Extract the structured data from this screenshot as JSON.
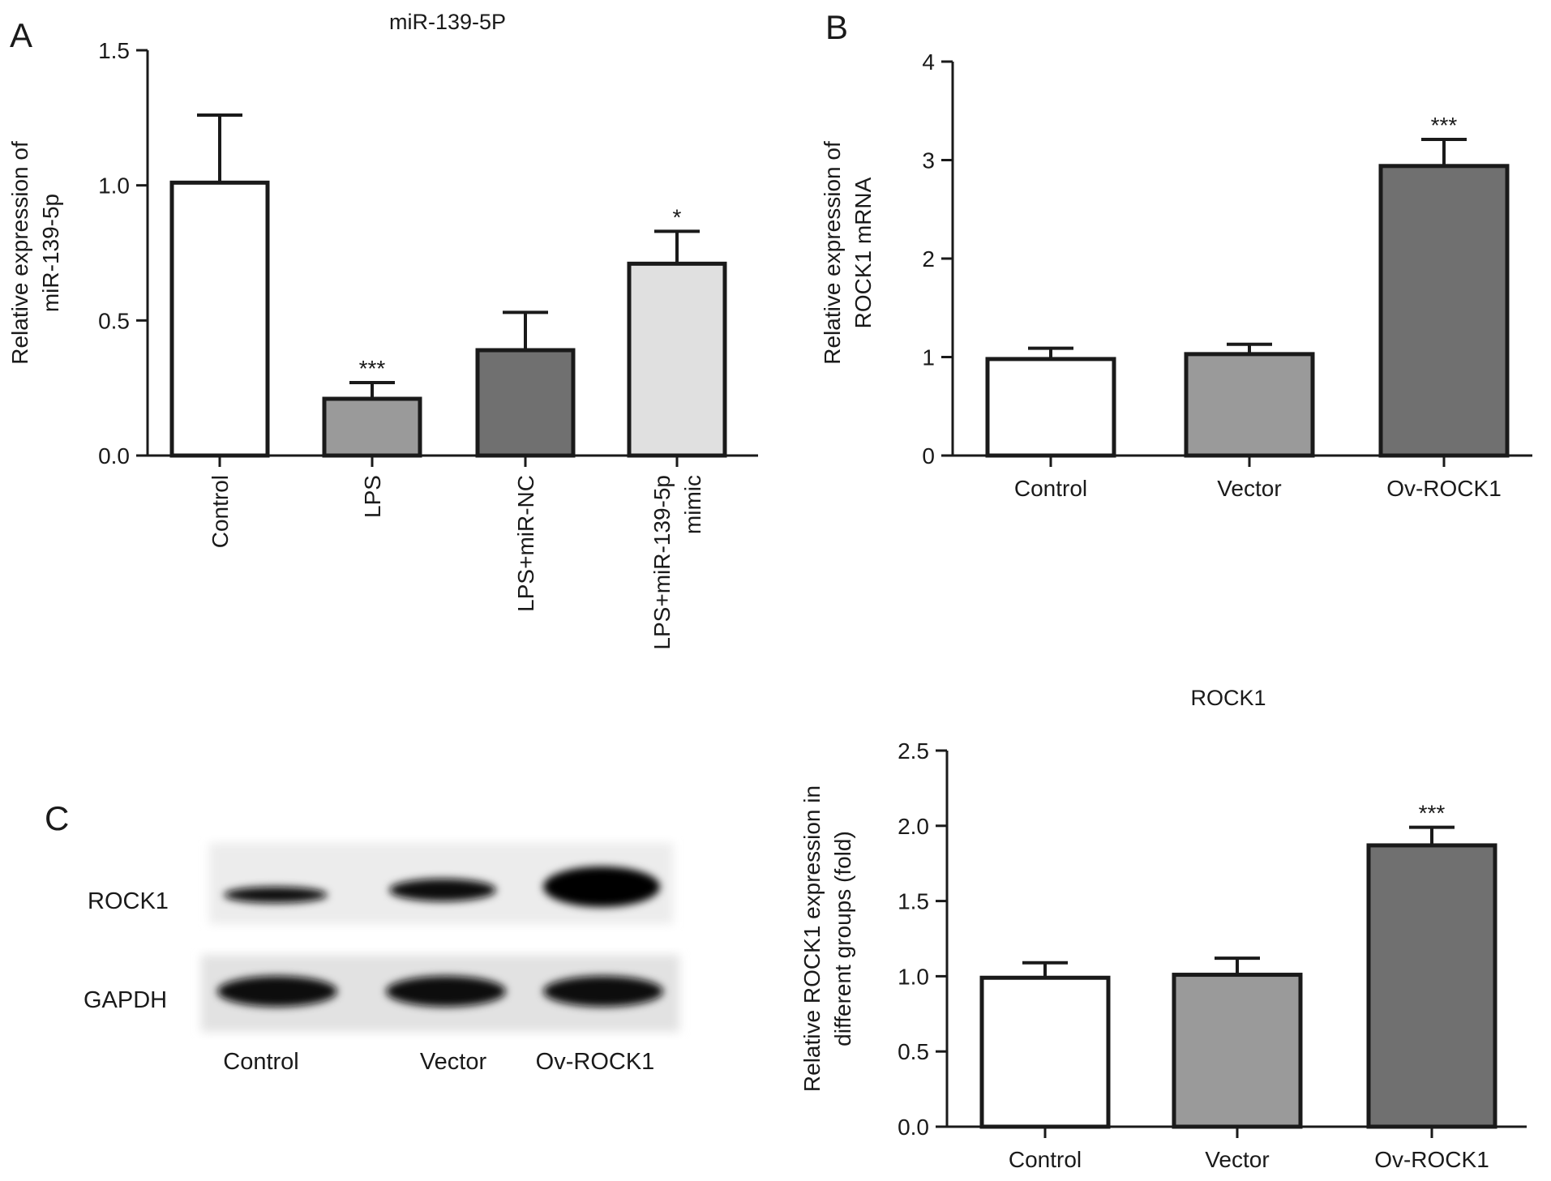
{
  "panels": {
    "a": "A",
    "b": "B",
    "c": "C"
  },
  "colors": {
    "white": "#ffffff",
    "light_gray": "#e0e0e0",
    "mid_gray": "#9a9a9a",
    "dark_gray": "#707070",
    "axis": "#1a1a1a"
  },
  "chart_data": [
    {
      "id": "A",
      "type": "bar",
      "title": "miR-139-5P",
      "ylabel_lines": [
        "Relative expression of",
        "miR-139-5p"
      ],
      "categories": [
        "Control",
        "LPS",
        "LPS+miR-NC",
        "LPS+miR-139-5p\nmimic"
      ],
      "values": [
        1.01,
        0.21,
        0.39,
        0.71
      ],
      "errors": [
        0.25,
        0.06,
        0.14,
        0.12
      ],
      "significance": [
        "",
        "***",
        "",
        "*"
      ],
      "fills": [
        "#ffffff",
        "#9a9a9a",
        "#707070",
        "#e0e0e0"
      ],
      "ylim": [
        0,
        1.5
      ],
      "yticks": [
        "0.0",
        "0.5",
        "1.0",
        "1.5"
      ],
      "ytick_values": [
        0,
        0.5,
        1.0,
        1.5
      ],
      "xtick_rotation": "vertical",
      "grid": false
    },
    {
      "id": "B",
      "type": "bar",
      "title": "",
      "ylabel_lines": [
        "Relative expression of",
        "ROCK1 mRNA"
      ],
      "categories": [
        "Control",
        "Vector",
        "Ov-ROCK1"
      ],
      "values": [
        0.98,
        1.03,
        2.94
      ],
      "errors": [
        0.11,
        0.1,
        0.27
      ],
      "significance": [
        "",
        "",
        "***"
      ],
      "fills": [
        "#ffffff",
        "#9a9a9a",
        "#707070"
      ],
      "ylim": [
        0,
        4
      ],
      "yticks": [
        "0",
        "1",
        "2",
        "3",
        "4"
      ],
      "ytick_values": [
        0,
        1,
        2,
        3,
        4
      ],
      "xtick_rotation": "horizontal",
      "grid": false
    },
    {
      "id": "C",
      "type": "bar",
      "title": "ROCK1",
      "ylabel_lines": [
        "Relative ROCK1 expression in",
        "different groups (fold)"
      ],
      "categories": [
        "Control",
        "Vector",
        "Ov-ROCK1"
      ],
      "values": [
        0.99,
        1.01,
        1.87
      ],
      "errors": [
        0.1,
        0.11,
        0.12
      ],
      "significance": [
        "",
        "",
        "***"
      ],
      "fills": [
        "#ffffff",
        "#9a9a9a",
        "#707070"
      ],
      "ylim": [
        0,
        2.5
      ],
      "yticks": [
        "0.0",
        "0.5",
        "1.0",
        "1.5",
        "2.0",
        "2.5"
      ],
      "ytick_values": [
        0,
        0.5,
        1.0,
        1.5,
        2.0,
        2.5
      ],
      "xtick_rotation": "horizontal",
      "grid": false
    }
  ],
  "blot": {
    "row_labels": [
      "ROCK1",
      "GAPDH"
    ],
    "lane_labels": [
      "Control",
      "Vector",
      "Ov-ROCK1"
    ],
    "rock1_relative_intensity": [
      0.45,
      0.55,
      1.0
    ],
    "gapdh_relative_intensity": [
      1.0,
      1.0,
      1.0
    ]
  }
}
